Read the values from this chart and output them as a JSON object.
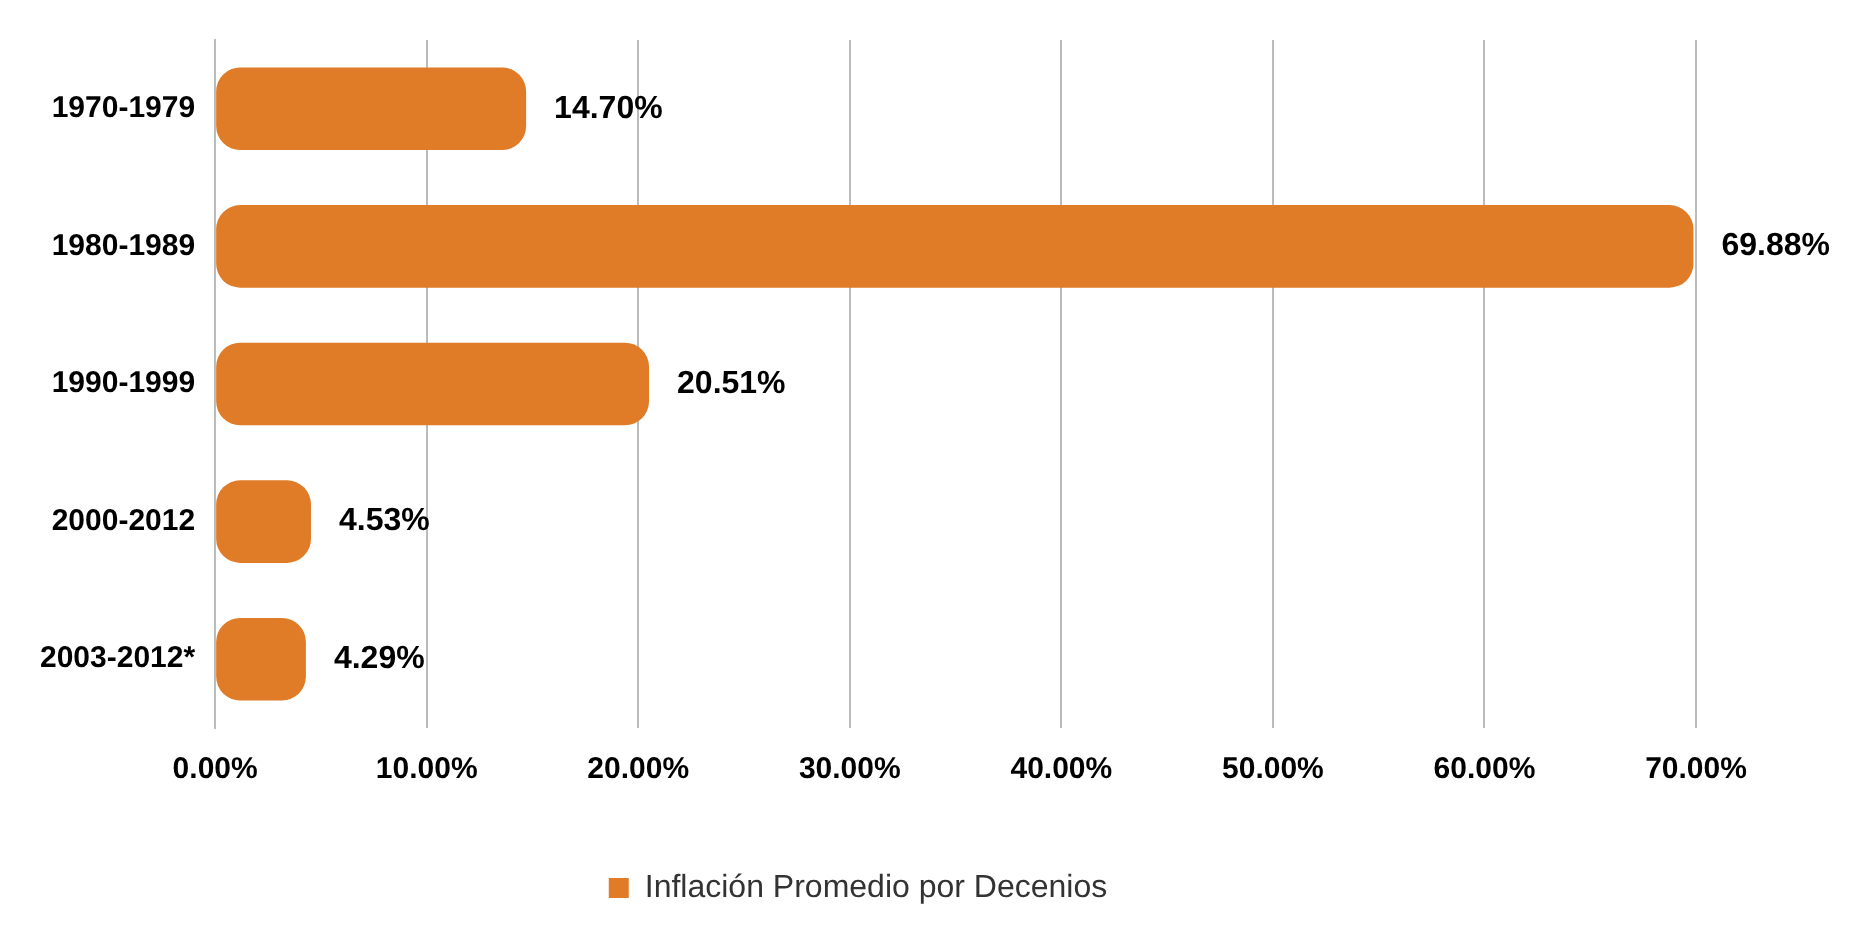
{
  "chart_data": {
    "type": "bar",
    "orientation": "horizontal",
    "categories": [
      "1970-1979",
      "1980-1989",
      "1990-1999",
      "2000-2012",
      "2003-2012*"
    ],
    "series": [
      {
        "name": "Inflación Promedio por Decenios",
        "color": "#e07b28",
        "values": [
          14.7,
          69.88,
          20.51,
          4.53,
          4.29
        ],
        "value_labels": [
          "14.70%",
          "69.88%",
          "20.51%",
          "4.53%",
          "4.29%"
        ]
      }
    ],
    "xlim": [
      0,
      70
    ],
    "xticks": [
      {
        "value": 0,
        "label": "0.00%"
      },
      {
        "value": 10,
        "label": "10.00%"
      },
      {
        "value": 20,
        "label": "20.00%"
      },
      {
        "value": 30,
        "label": "30.00%"
      },
      {
        "value": 40,
        "label": "40.00%"
      },
      {
        "value": 50,
        "label": "50.00%"
      },
      {
        "value": 60,
        "label": "60.00%"
      },
      {
        "value": 70,
        "label": "70.00%"
      }
    ],
    "grid": "x",
    "legend": "bottom"
  }
}
